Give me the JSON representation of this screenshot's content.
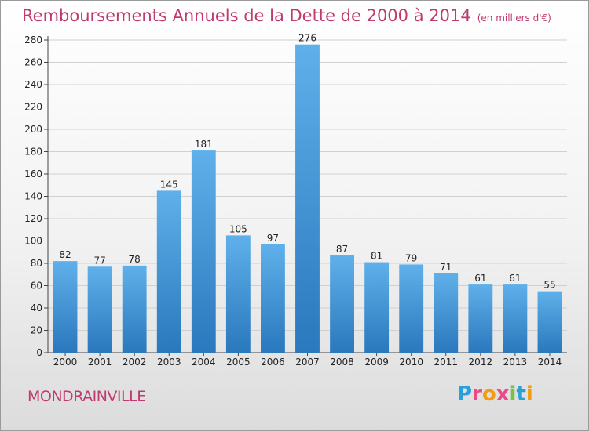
{
  "header": {
    "title": "Remboursements Annuels de la Dette de 2000 à 2014",
    "unit": "(en milliers d'€)"
  },
  "footer": {
    "town": "MONDRAINVILLE",
    "logo_letters": [
      "P",
      "r",
      "o",
      "x",
      "i",
      "t",
      "i"
    ],
    "logo_colors": [
      "#2a9fd8",
      "#e94b8a",
      "#f39c12",
      "#e94b8a",
      "#7ac143",
      "#2a9fd8",
      "#f39c12"
    ]
  },
  "chart_data": {
    "type": "bar",
    "categories": [
      "2000",
      "2001",
      "2002",
      "2003",
      "2004",
      "2005",
      "2006",
      "2007",
      "2008",
      "2009",
      "2010",
      "2011",
      "2012",
      "2013",
      "2014"
    ],
    "values": [
      82,
      77,
      78,
      145,
      181,
      105,
      97,
      276,
      87,
      81,
      79,
      71,
      61,
      61,
      55
    ],
    "title": "Remboursements Annuels de la Dette de 2000 à 2014",
    "ylim": [
      0,
      280
    ],
    "yticks": [
      0,
      20,
      40,
      60,
      80,
      100,
      120,
      140,
      160,
      180,
      200,
      220,
      240,
      260,
      280
    ],
    "grid": true,
    "bar_color_top": "#5fb0ea",
    "bar_color_bottom": "#2a78bd"
  }
}
